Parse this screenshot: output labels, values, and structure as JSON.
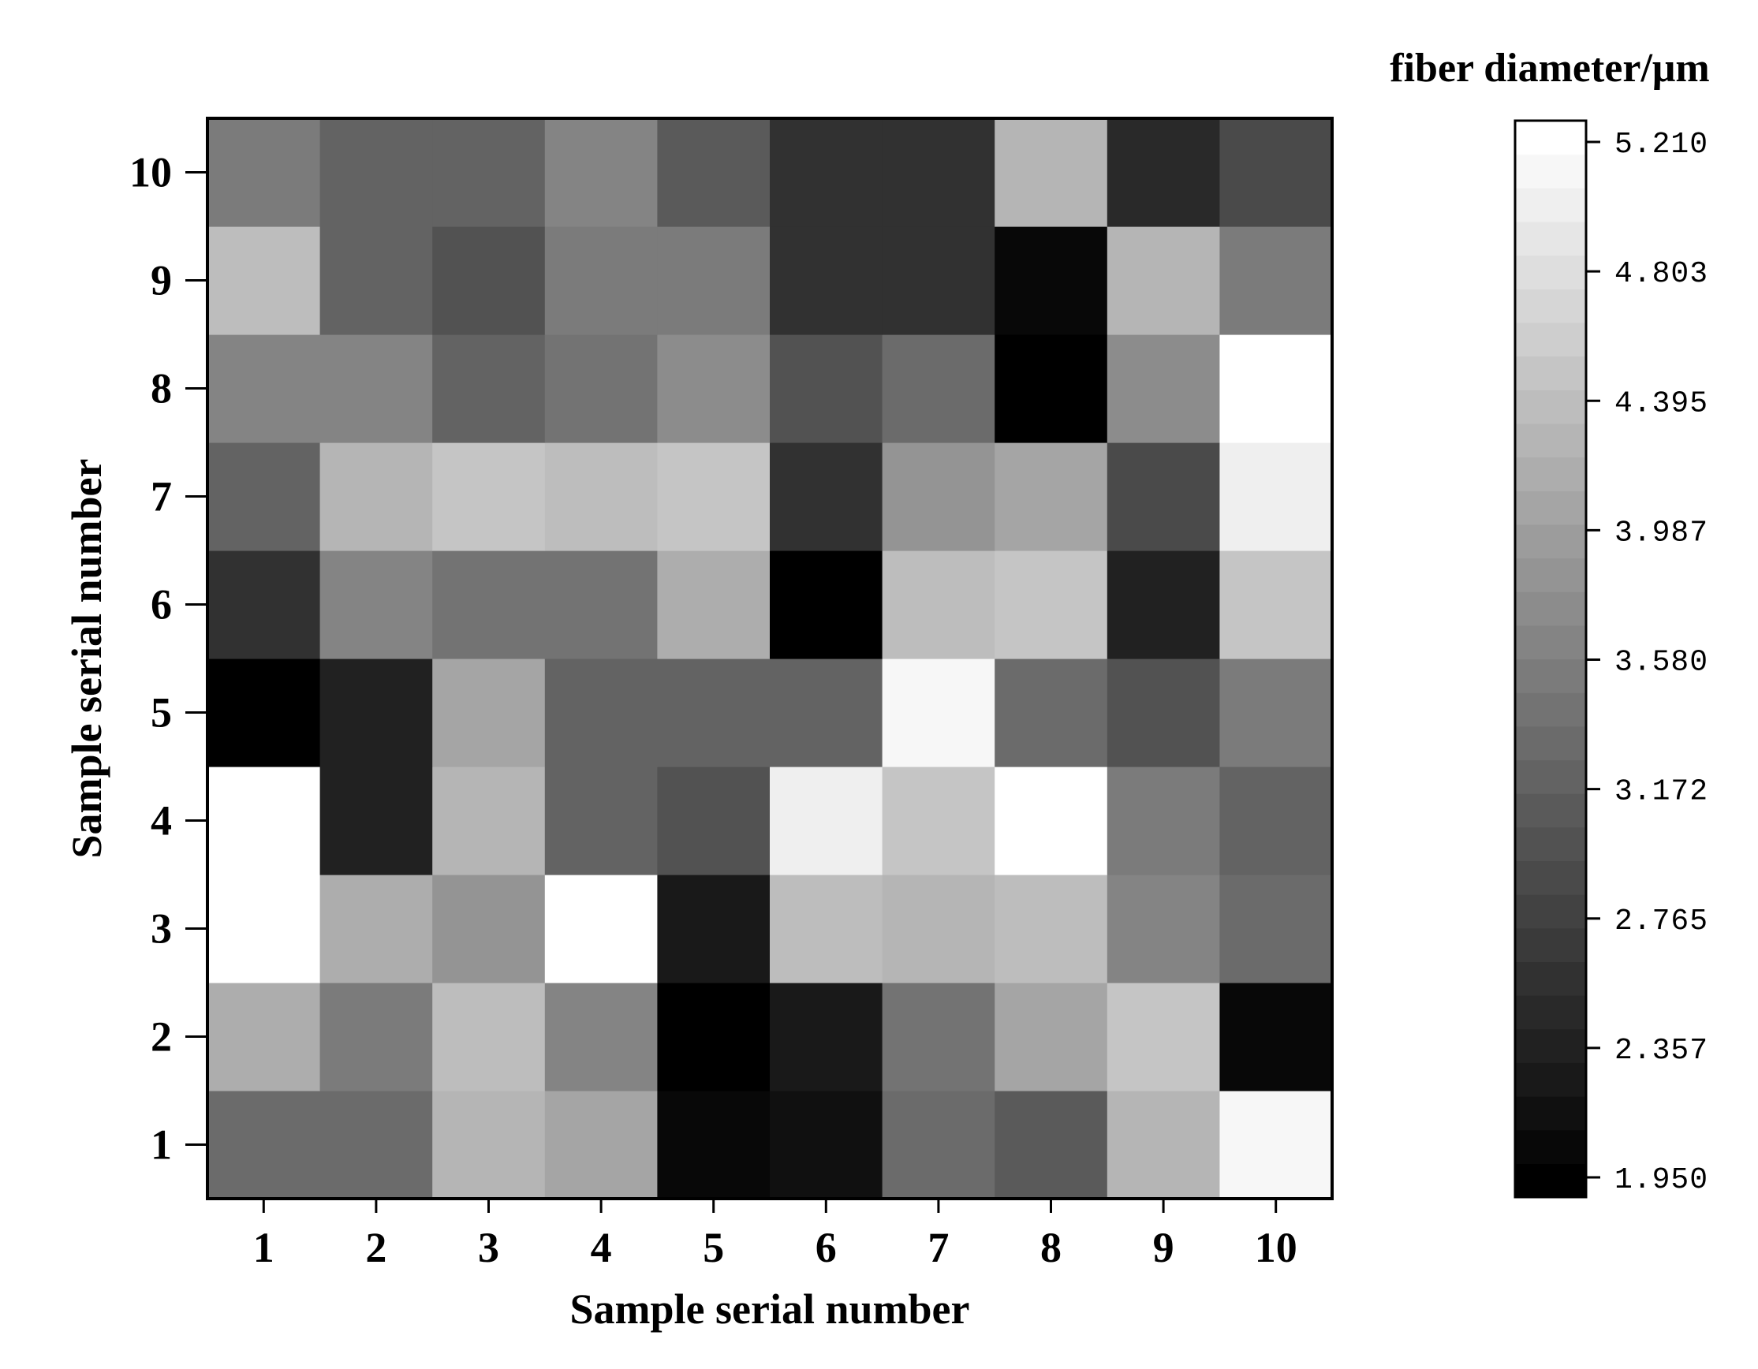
{
  "chart_data": {
    "type": "heatmap",
    "xlabel": "Sample serial number",
    "ylabel": "Sample serial number",
    "x_categories": [
      "1",
      "2",
      "3",
      "4",
      "5",
      "6",
      "7",
      "8",
      "9",
      "10"
    ],
    "y_categories": [
      "1",
      "2",
      "3",
      "4",
      "5",
      "6",
      "7",
      "8",
      "9",
      "10"
    ],
    "colorbar": {
      "title": "fiber diameter/μm",
      "min": 1.95,
      "max": 5.21,
      "ticks": [
        "1.950",
        "2.357",
        "2.765",
        "3.172",
        "3.580",
        "3.987",
        "4.395",
        "4.803",
        "5.210"
      ],
      "colormap": "grayscale",
      "low_color": "#000000",
      "high_color": "#ffffff",
      "levels": 32
    },
    "rows_note": "values[i] is row for y = i+1, columns x = 1..10",
    "values": [
      [
        3.35,
        3.27,
        4.29,
        4.07,
        2.1,
        2.2,
        3.28,
        3.13,
        4.3,
        5.13
      ],
      [
        4.15,
        3.55,
        4.38,
        3.61,
        1.95,
        2.3,
        3.38,
        4.05,
        4.52,
        2.1
      ],
      [
        5.21,
        4.17,
        3.8,
        5.21,
        2.3,
        4.39,
        4.27,
        4.42,
        3.6,
        3.29
      ],
      [
        5.21,
        2.35,
        4.27,
        3.25,
        3.0,
        5.05,
        4.45,
        5.21,
        3.55,
        3.25
      ],
      [
        1.95,
        2.4,
        4.05,
        3.25,
        3.25,
        3.25,
        5.08,
        3.29,
        3.05,
        3.55
      ],
      [
        2.62,
        3.58,
        3.37,
        3.37,
        4.19,
        1.95,
        4.34,
        4.46,
        2.42,
        4.45
      ],
      [
        3.22,
        4.29,
        4.52,
        4.42,
        4.46,
        2.62,
        3.88,
        4.07,
        2.93,
        5.05
      ],
      [
        3.58,
        3.58,
        3.25,
        3.37,
        3.78,
        2.95,
        3.28,
        1.95,
        3.78,
        5.21
      ],
      [
        4.35,
        3.18,
        2.95,
        3.55,
        3.55,
        2.55,
        2.55,
        2.08,
        4.31,
        3.55
      ],
      [
        3.52,
        3.19,
        3.19,
        3.6,
        3.09,
        2.55,
        2.55,
        4.23,
        2.45,
        2.9
      ]
    ]
  }
}
